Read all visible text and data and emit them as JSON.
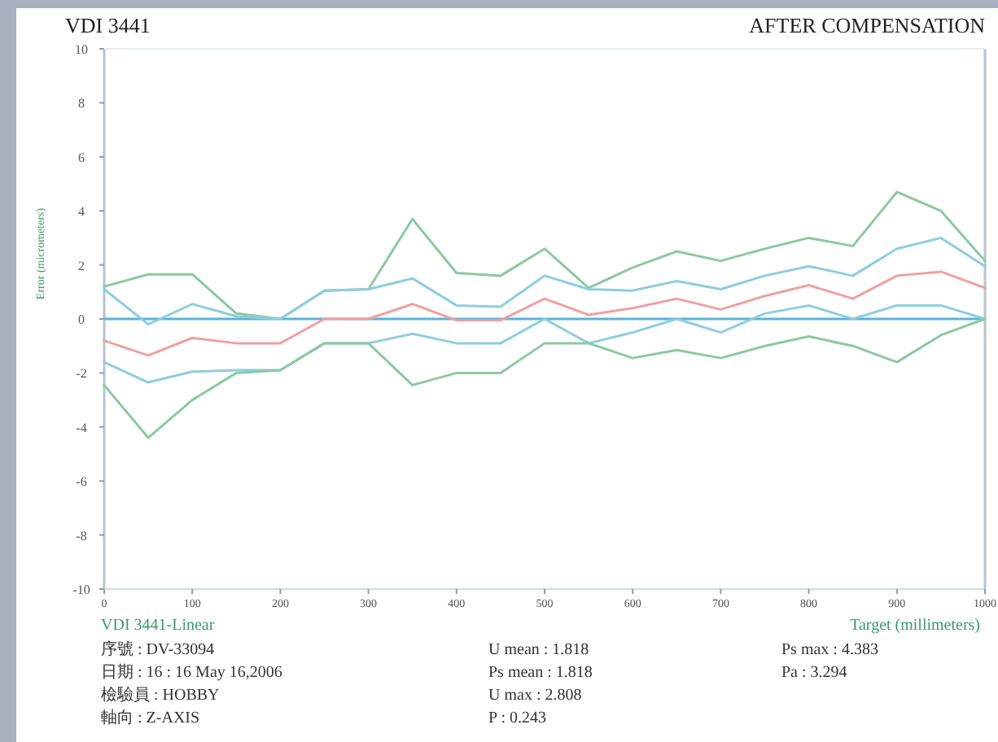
{
  "chart_data": {
    "type": "line",
    "title": "VDI 3441",
    "subtitle": "AFTER COMPENSATION",
    "xlabel": "Target (millimeters)",
    "ylabel": "Error (micrometers)",
    "annotations": [
      "VDI 3441-Linear",
      "序號 : DV-33094",
      "日期 : 16 : 16  May 16,2006",
      "檢驗員 : HOBBY",
      "軸向 : Z-AXIS",
      "U mean : 1.818",
      "Ps mean : 1.818",
      "U max : 2.808",
      "P : 0.243",
      "Ps max : 4.383",
      "Pa : 3.294"
    ],
    "x": [
      0,
      50,
      100,
      150,
      200,
      250,
      300,
      350,
      400,
      450,
      500,
      550,
      600,
      650,
      700,
      750,
      800,
      850,
      900,
      950,
      1000
    ],
    "series": [
      {
        "color": "#8cc9a0",
        "values": [
          1.2,
          1.65,
          1.65,
          0.2,
          0,
          1.05,
          1.1,
          3.7,
          1.7,
          1.6,
          2.6,
          1.15,
          1.9,
          2.5,
          2.15,
          2.6,
          3.0,
          2.7,
          4.7,
          4.0,
          2.15
        ]
      },
      {
        "color": "#8ecde0",
        "values": [
          1.1,
          -0.2,
          0.55,
          0.1,
          0,
          1.05,
          1.1,
          1.5,
          0.5,
          0.45,
          1.6,
          1.1,
          1.05,
          1.4,
          1.1,
          1.6,
          1.95,
          1.6,
          2.6,
          3.0,
          1.95
        ]
      },
      {
        "color": "#f0a0a0",
        "values": [
          -0.8,
          -1.35,
          -0.7,
          -0.9,
          -0.9,
          0,
          0,
          0.55,
          -0.05,
          -0.05,
          0.75,
          0.15,
          0.4,
          0.75,
          0.35,
          0.85,
          1.25,
          0.75,
          1.6,
          1.75,
          1.15
        ]
      },
      {
        "color": "#8ecde0",
        "values": [
          -1.6,
          -2.35,
          -1.95,
          -1.9,
          -1.9,
          -0.9,
          -0.9,
          -0.55,
          -0.9,
          -0.9,
          0,
          -0.9,
          -0.5,
          0,
          -0.5,
          0.2,
          0.5,
          0,
          0.5,
          0.5,
          0
        ]
      },
      {
        "color": "#8cc9a0",
        "values": [
          -2.45,
          -4.4,
          -3.0,
          -2.0,
          -1.9,
          -0.9,
          -0.9,
          -2.45,
          -2.0,
          -2.0,
          -0.9,
          -0.9,
          -1.45,
          -1.15,
          -1.45,
          -1.0,
          -0.65,
          -1.0,
          -1.6,
          -0.6,
          0
        ]
      }
    ],
    "ref_lines": [
      {
        "axis": "y",
        "value": 0,
        "color": "#5ab4d8"
      }
    ],
    "xlim": [
      0,
      1000
    ],
    "ylim": [
      -10,
      10
    ],
    "xticks": [
      0,
      100,
      200,
      300,
      400,
      500,
      600,
      700,
      800,
      900,
      1000
    ],
    "yticks": [
      -10,
      -8,
      -6,
      -4,
      -2,
      0,
      2,
      4,
      6,
      8,
      10
    ]
  }
}
